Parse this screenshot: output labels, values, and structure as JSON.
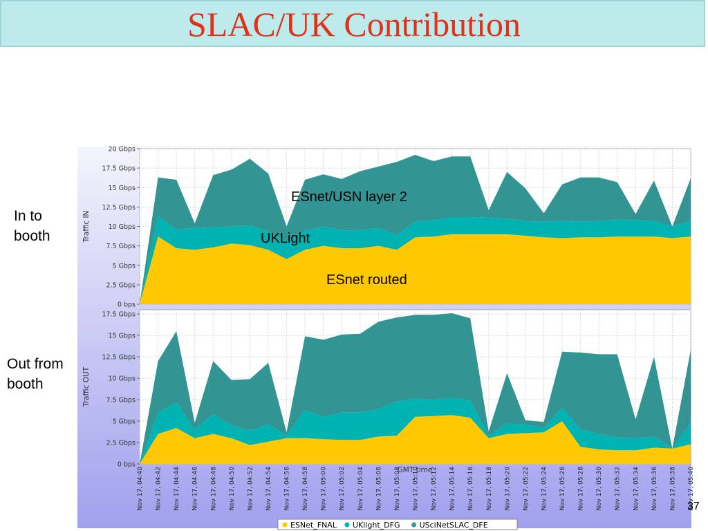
{
  "slide": {
    "title": "SLAC/UK Contribution",
    "label_in": "In to booth",
    "label_out": "Out from booth",
    "page_number": "37"
  },
  "chart_data": {
    "type": "area",
    "stacked": true,
    "x_axis_label": "GMT time",
    "x_tick_labels": [
      "Nov 17, 04:40",
      "Nov 17, 04:42",
      "Nov 17, 04:44",
      "Nov 17, 04:46",
      "Nov 17, 04:48",
      "Nov 17, 04:50",
      "Nov 17, 04:52",
      "Nov 17, 04:54",
      "Nov 17, 04:56",
      "Nov 17, 04:58",
      "Nov 17, 05:00",
      "Nov 17, 05:02",
      "Nov 17, 05:04",
      "Nov 17, 05:06",
      "Nov 17, 05:08",
      "Nov 17, 05:10",
      "Nov 17, 05:12",
      "Nov 17, 05:14",
      "Nov 17, 05:16",
      "Nov 17, 05:18",
      "Nov 17, 05:20",
      "Nov 17, 05:22",
      "Nov 17, 05:24",
      "Nov 17, 05:26",
      "Nov 17, 05:28",
      "Nov 17, 05:30",
      "Nov 17, 05:32",
      "Nov 17, 05:34",
      "Nov 17, 05:36",
      "Nov 17, 05:38",
      "Nov 17, 05:40"
    ],
    "x_minutes": [
      0,
      2,
      4,
      6,
      8,
      10,
      12,
      14,
      16,
      18,
      20,
      22,
      24,
      26,
      28,
      30,
      32,
      34,
      36,
      38,
      40,
      42,
      44,
      46,
      48,
      50,
      52,
      54,
      56,
      58,
      60
    ],
    "legend_position": "bottom",
    "colors": {
      "ESNet_FNAL": "#ffc800",
      "UKlight_DFG": "#00b3b3",
      "USciNetSLAC_DFE": "#339494"
    },
    "annotations": [
      "ESnet/USN layer 2",
      "UKLight",
      "ESnet routed"
    ],
    "panels": [
      {
        "id": "in",
        "ylabel": "Traffic IN",
        "ylim": [
          0,
          20
        ],
        "y_ticks": [
          0,
          2.5,
          5,
          7.5,
          10,
          12.5,
          15,
          17.5,
          20
        ],
        "y_tick_labels": [
          "0 bps",
          "2.5 Gbps",
          "5 Gbps",
          "7.5 Gbps",
          "10 Gbps",
          "12.5 Gbps",
          "15 Gbps",
          "17.5 Gbps",
          "20 Gbps"
        ],
        "series": [
          {
            "name": "ESNet_FNAL",
            "values": [
              0,
              8.7,
              7.2,
              7.0,
              7.3,
              7.8,
              7.6,
              7.0,
              5.8,
              7.0,
              7.5,
              7.2,
              7.2,
              7.5,
              7.0,
              8.6,
              8.7,
              9.0,
              9.0,
              9.0,
              9.0,
              8.8,
              8.6,
              8.5,
              8.6,
              8.6,
              8.7,
              8.7,
              8.7,
              8.5,
              8.7
            ]
          },
          {
            "name": "UKlight_DFG",
            "values": [
              0,
              2.6,
              2.4,
              2.8,
              2.6,
              2.2,
              2.5,
              2.4,
              2.2,
              2.4,
              2.5,
              2.3,
              2.3,
              2.3,
              1.9,
              2.0,
              2.1,
              2.2,
              2.2,
              2.1,
              2.0,
              1.9,
              2.0,
              2.2,
              2.0,
              2.1,
              2.2,
              2.1,
              2.0,
              1.5,
              2.0
            ]
          },
          {
            "name": "USciNetSLAC_DFE",
            "values": [
              0,
              5.0,
              6.4,
              0.6,
              6.7,
              7.3,
              8.6,
              7.4,
              2.0,
              6.6,
              6.7,
              6.6,
              7.6,
              7.9,
              9.4,
              8.6,
              7.6,
              7.8,
              7.8,
              1.0,
              6.0,
              4.2,
              1.1,
              4.7,
              5.7,
              5.6,
              4.8,
              0.8,
              5.2,
              0.0,
              5.5
            ]
          }
        ]
      },
      {
        "id": "out",
        "ylabel": "Traffic OUT",
        "ylim": [
          0,
          18
        ],
        "y_ticks": [
          0,
          2.5,
          5,
          7.5,
          10,
          12.5,
          15,
          17.5
        ],
        "y_tick_labels": [
          "0 bps",
          "2.5 Gbps",
          "5 Gbps",
          "7.5 Gbps",
          "10 Gbps",
          "12.5 Gbps",
          "15 Gbps",
          "17.5 Gbps"
        ],
        "series": [
          {
            "name": "ESNet_FNAL",
            "values": [
              0,
              3.5,
              4.2,
              3.0,
              3.5,
              3.0,
              2.2,
              2.6,
              3.0,
              3.0,
              2.9,
              2.8,
              2.8,
              3.2,
              3.3,
              5.5,
              5.6,
              5.7,
              5.4,
              3.0,
              3.5,
              3.6,
              3.7,
              5.0,
              2.0,
              1.7,
              1.6,
              1.6,
              1.9,
              1.8,
              2.3
            ]
          },
          {
            "name": "UKlight_DFG",
            "values": [
              0,
              2.5,
              3.0,
              1.0,
              2.3,
              1.5,
              1.7,
              2.0,
              0.3,
              3.3,
              2.6,
              3.2,
              3.2,
              3.2,
              4.0,
              2.1,
              1.9,
              2.0,
              2.0,
              0.3,
              1.2,
              1.0,
              0.5,
              1.6,
              2.0,
              1.8,
              1.5,
              1.4,
              1.3,
              0.0,
              2.5
            ]
          },
          {
            "name": "USciNetSLAC_DFE",
            "values": [
              0,
              6.0,
              8.3,
              0.8,
              6.2,
              5.3,
              6.0,
              7.2,
              0.4,
              8.6,
              9.0,
              9.1,
              9.2,
              10.2,
              9.8,
              9.8,
              9.9,
              9.9,
              9.6,
              0.5,
              5.9,
              0.5,
              0.7,
              6.5,
              9.0,
              9.3,
              9.7,
              2.2,
              9.3,
              0.0,
              8.5
            ]
          }
        ]
      }
    ]
  }
}
